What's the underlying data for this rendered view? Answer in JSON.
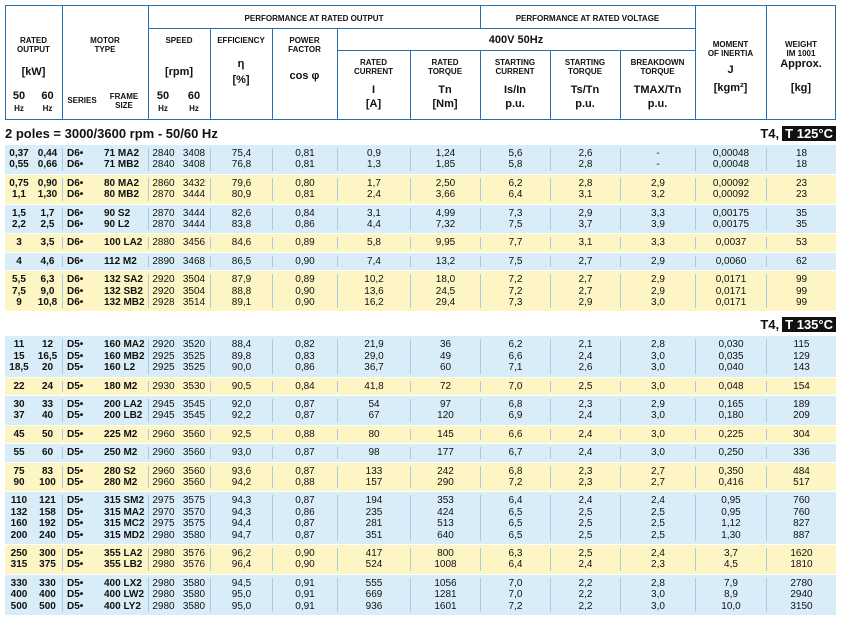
{
  "header": {
    "performance_output": "PERFORMANCE AT RATED OUTPUT",
    "performance_voltage": "PERFORMANCE AT RATED VOLTAGE",
    "rated_output": "RATED\nOUTPUT",
    "kw": "[kW]",
    "out_50": "50",
    "out_60": "60",
    "out_hz50": "Hz",
    "out_hz60": "Hz",
    "motor_type": "MOTOR\nTYPE",
    "series": "SERIES",
    "frame": "FRAME\nSIZE",
    "speed": "SPEED",
    "rpm": "[rpm]",
    "sp_50": "50",
    "sp_60": "60",
    "sp_hz50": "Hz",
    "sp_hz60": "Hz",
    "efficiency": "EFFICIENCY",
    "eta": "η",
    "pct": "[%]",
    "power_factor": "POWER\nFACTOR",
    "cos": "cos φ",
    "voltage": "400V 50Hz",
    "rated_current": "RATED\nCURRENT",
    "i": "I",
    "a": "[A]",
    "rated_torque": "RATED\nTORQUE",
    "tn": "Tn",
    "nm": "[Nm]",
    "starting_current": "STARTING\nCURRENT",
    "is_in": "Is/In",
    "pu1": "p.u.",
    "starting_torque": "STARTING\nTORQUE",
    "ts_tn": "Ts/Tn",
    "pu2": "p.u.",
    "breakdown_torque": "BREAKDOWN\nTORQUE",
    "tmax_tn": "TMAX/Tn",
    "pu3": "p.u.",
    "inertia": "MOMENT\nOF INERTIA",
    "j": "J",
    "kgm2": "[kgm²]",
    "weight": "WEIGHT\nIM 1001",
    "approx": "Approx.",
    "kg": "[kg]"
  },
  "sections": [
    {
      "title": "2 poles = 3000/3600 rpm - 50/60 Hz",
      "class_label": "T4,",
      "temp": "T 125°C",
      "groups": [
        [
          [
            "0,37",
            "0,44",
            "D6•",
            "71 MA2",
            "2840",
            "3408",
            "75,4",
            "0,81",
            "0,9",
            "1,24",
            "5,6",
            "2,6",
            "-",
            "0,00048",
            "18"
          ],
          [
            "0,55",
            "0,66",
            "D6•",
            "71 MB2",
            "2840",
            "3408",
            "76,8",
            "0,81",
            "1,3",
            "1,85",
            "5,8",
            "2,8",
            "-",
            "0,00048",
            "18"
          ]
        ],
        [
          [
            "0,75",
            "0,90",
            "D6•",
            "80 MA2",
            "2860",
            "3432",
            "79,6",
            "0,80",
            "1,7",
            "2,50",
            "6,2",
            "2,8",
            "2,9",
            "0,00092",
            "23"
          ],
          [
            "1,1",
            "1,30",
            "D6•",
            "80 MB2",
            "2870",
            "3444",
            "80,9",
            "0,81",
            "2,4",
            "3,66",
            "6,4",
            "3,1",
            "3,2",
            "0,00092",
            "23"
          ]
        ],
        [
          [
            "1,5",
            "1,7",
            "D6•",
            "90 S2",
            "2870",
            "3444",
            "82,6",
            "0,84",
            "3,1",
            "4,99",
            "7,3",
            "2,9",
            "3,3",
            "0,00175",
            "35"
          ],
          [
            "2,2",
            "2,5",
            "D6•",
            "90 L2",
            "2870",
            "3444",
            "83,8",
            "0,86",
            "4,4",
            "7,32",
            "7,5",
            "3,7",
            "3,9",
            "0,00175",
            "35"
          ]
        ],
        [
          [
            "3",
            "3,5",
            "D6•",
            "100 LA2",
            "2880",
            "3456",
            "84,6",
            "0,89",
            "5,8",
            "9,95",
            "7,7",
            "3,1",
            "3,3",
            "0,0037",
            "53"
          ]
        ],
        [
          [
            "4",
            "4,6",
            "D6•",
            "112 M2",
            "2890",
            "3468",
            "86,5",
            "0,90",
            "7,4",
            "13,2",
            "7,5",
            "2,7",
            "2,9",
            "0,0060",
            "62"
          ]
        ],
        [
          [
            "5,5",
            "6,3",
            "D6•",
            "132 SA2",
            "2920",
            "3504",
            "87,9",
            "0,89",
            "10,2",
            "18,0",
            "7,2",
            "2,7",
            "2,9",
            "0,0171",
            "99"
          ],
          [
            "7,5",
            "9,0",
            "D6•",
            "132 SB2",
            "2920",
            "3504",
            "88,8",
            "0,90",
            "13,6",
            "24,5",
            "7,2",
            "2,7",
            "2,9",
            "0,0171",
            "99"
          ],
          [
            "9",
            "10,8",
            "D6•",
            "132 MB2",
            "2928",
            "3514",
            "89,1",
            "0,90",
            "16,2",
            "29,4",
            "7,3",
            "2,9",
            "3,0",
            "0,0171",
            "99"
          ]
        ]
      ]
    },
    {
      "class_label": "T4,",
      "temp": "T 135°C",
      "groups": [
        [
          [
            "11",
            "12",
            "D5•",
            "160 MA2",
            "2920",
            "3520",
            "88,4",
            "0,82",
            "21,9",
            "36",
            "6,2",
            "2,1",
            "2,8",
            "0,030",
            "115"
          ],
          [
            "15",
            "16,5",
            "D5•",
            "160 MB2",
            "2925",
            "3525",
            "89,8",
            "0,83",
            "29,0",
            "49",
            "6,6",
            "2,4",
            "3,0",
            "0,035",
            "129"
          ],
          [
            "18,5",
            "20",
            "D5•",
            "160 L2",
            "2925",
            "3525",
            "90,0",
            "0,86",
            "36,7",
            "60",
            "7,1",
            "2,6",
            "3,0",
            "0,040",
            "143"
          ]
        ],
        [
          [
            "22",
            "24",
            "D5•",
            "180 M2",
            "2930",
            "3530",
            "90,5",
            "0,84",
            "41,8",
            "72",
            "7,0",
            "2,5",
            "3,0",
            "0,048",
            "154"
          ]
        ],
        [
          [
            "30",
            "33",
            "D5•",
            "200 LA2",
            "2945",
            "3545",
            "92,0",
            "0,87",
            "54",
            "97",
            "6,8",
            "2,3",
            "2,9",
            "0,165",
            "189"
          ],
          [
            "37",
            "40",
            "D5•",
            "200 LB2",
            "2945",
            "3545",
            "92,2",
            "0,87",
            "67",
            "120",
            "6,9",
            "2,4",
            "3,0",
            "0,180",
            "209"
          ]
        ],
        [
          [
            "45",
            "50",
            "D5•",
            "225 M2",
            "2960",
            "3560",
            "92,5",
            "0,88",
            "80",
            "145",
            "6,6",
            "2,4",
            "3,0",
            "0,225",
            "304"
          ]
        ],
        [
          [
            "55",
            "60",
            "D5•",
            "250 M2",
            "2960",
            "3560",
            "93,0",
            "0,87",
            "98",
            "177",
            "6,7",
            "2,4",
            "3,0",
            "0,250",
            "336"
          ]
        ],
        [
          [
            "75",
            "83",
            "D5•",
            "280 S2",
            "2960",
            "3560",
            "93,6",
            "0,87",
            "133",
            "242",
            "6,8",
            "2,3",
            "2,7",
            "0,350",
            "484"
          ],
          [
            "90",
            "100",
            "D5•",
            "280 M2",
            "2960",
            "3560",
            "94,2",
            "0,88",
            "157",
            "290",
            "7,2",
            "2,3",
            "2,7",
            "0,416",
            "517"
          ]
        ],
        [
          [
            "110",
            "121",
            "D5•",
            "315 SM2",
            "2975",
            "3575",
            "94,3",
            "0,87",
            "194",
            "353",
            "6,4",
            "2,4",
            "2,4",
            "0,95",
            "760"
          ],
          [
            "132",
            "158",
            "D5•",
            "315 MA2",
            "2970",
            "3570",
            "94,3",
            "0,86",
            "235",
            "424",
            "6,5",
            "2,5",
            "2,5",
            "0,95",
            "760"
          ],
          [
            "160",
            "192",
            "D5•",
            "315 MC2",
            "2975",
            "3575",
            "94,4",
            "0,87",
            "281",
            "513",
            "6,5",
            "2,5",
            "2,5",
            "1,12",
            "827"
          ],
          [
            "200",
            "240",
            "D5•",
            "315 MD2",
            "2980",
            "3580",
            "94,7",
            "0,87",
            "351",
            "640",
            "6,5",
            "2,5",
            "2,5",
            "1,30",
            "887"
          ]
        ],
        [
          [
            "250",
            "300",
            "D5•",
            "355 LA2",
            "2980",
            "3576",
            "96,2",
            "0,90",
            "417",
            "800",
            "6,3",
            "2,5",
            "2,4",
            "3,7",
            "1620"
          ],
          [
            "315",
            "375",
            "D5•",
            "355 LB2",
            "2980",
            "3576",
            "96,4",
            "0,90",
            "524",
            "1008",
            "6,4",
            "2,4",
            "2,3",
            "4,5",
            "1810"
          ]
        ],
        [
          [
            "330",
            "330",
            "D5•",
            "400 LX2",
            "2980",
            "3580",
            "94,5",
            "0,91",
            "555",
            "1056",
            "7,0",
            "2,2",
            "2,8",
            "7,9",
            "2780"
          ],
          [
            "400",
            "400",
            "D5•",
            "400 LW2",
            "2980",
            "3580",
            "95,0",
            "0,91",
            "669",
            "1281",
            "7,0",
            "2,2",
            "3,0",
            "8,9",
            "2940"
          ],
          [
            "500",
            "500",
            "D5•",
            "400 LY2",
            "2980",
            "3580",
            "95,0",
            "0,91",
            "936",
            "1601",
            "7,2",
            "2,2",
            "3,0",
            "10,0",
            "3150"
          ]
        ]
      ]
    }
  ]
}
